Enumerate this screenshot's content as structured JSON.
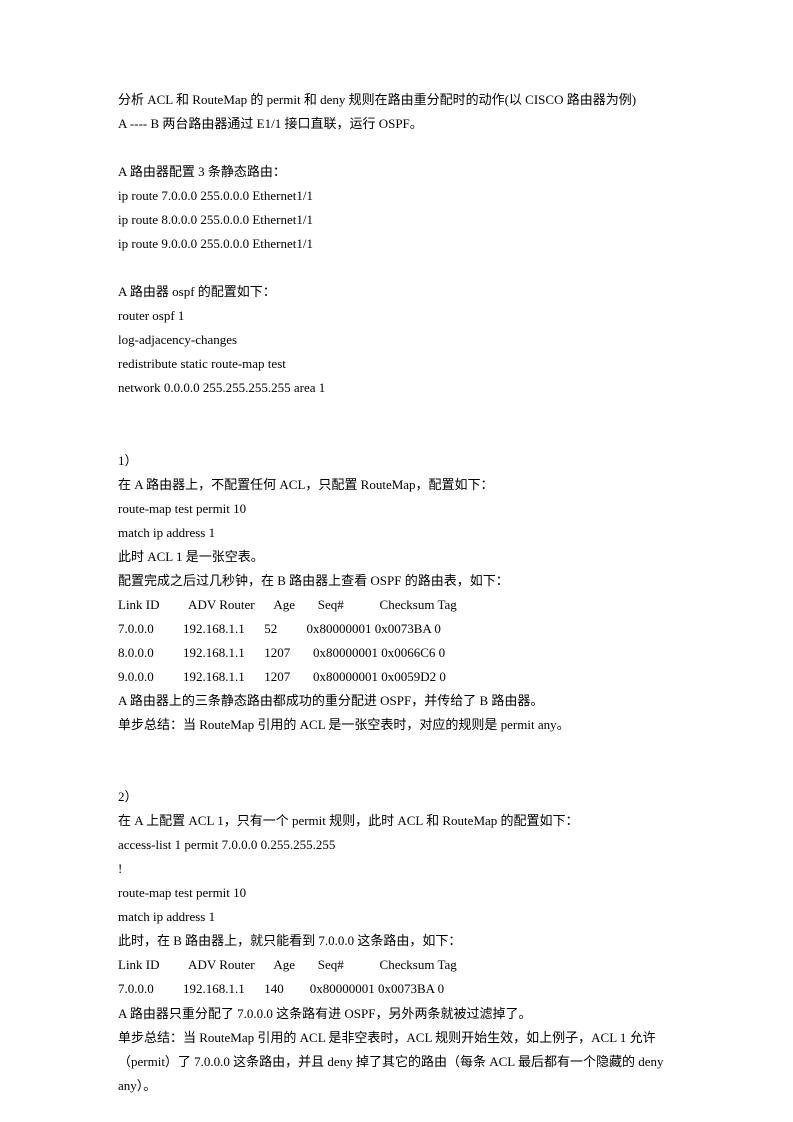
{
  "intro": {
    "line1": "分析 ACL 和 RouteMap 的 permit 和 deny 规则在路由重分配时的动作(以 CISCO 路由器为例)",
    "line2": "A ---- B  两台路由器通过 E1/1 接口直联，运行 OSPF。"
  },
  "static_routes": {
    "title": "A 路由器配置 3 条静态路由：",
    "r1": "ip route 7.0.0.0 255.0.0.0 Ethernet1/1",
    "r2": "ip route 8.0.0.0 255.0.0.0 Ethernet1/1",
    "r3": "ip route 9.0.0.0 255.0.0.0 Ethernet1/1"
  },
  "ospf_config": {
    "title": "A 路由器 ospf 的配置如下：",
    "l1": "router ospf 1",
    "l2": "log-adjacency-changes",
    "l3": "redistribute static route-map test",
    "l4": "network 0.0.0.0 255.255.255.255 area 1"
  },
  "section1": {
    "num": "1）",
    "l1": "在 A 路由器上，不配置任何 ACL，只配置 RouteMap，配置如下：",
    "l2": "route-map test permit 10",
    "l3": "match ip address 1",
    "l4": "此时 ACL 1 是一张空表。",
    "l5": "配置完成之后过几秒钟，在 B 路由器上查看 OSPF 的路由表，如下：",
    "header": "Link ID         ADV Router      Age       Seq#           Checksum Tag",
    "row1": "7.0.0.0         192.168.1.1      52         0x80000001 0x0073BA 0",
    "row2": "8.0.0.0         192.168.1.1      1207       0x80000001 0x0066C6 0",
    "row3": "9.0.0.0         192.168.1.1      1207       0x80000001 0x0059D2 0",
    "l6": "A 路由器上的三条静态路由都成功的重分配进 OSPF，并传给了 B 路由器。",
    "l7": "单步总结：当 RouteMap 引用的 ACL 是一张空表时，对应的规则是 permit any。"
  },
  "section2": {
    "num": "2）",
    "l1": "在 A 上配置 ACL 1，只有一个 permit 规则，此时 ACL 和 RouteMap 的配置如下：",
    "l2": "access-list 1 permit 7.0.0.0 0.255.255.255",
    "l3": "!",
    "l4": "route-map test permit 10",
    "l5": "match ip address 1",
    "l6": "此时，在 B 路由器上，就只能看到 7.0.0.0 这条路由，如下：",
    "header": "Link ID         ADV Router      Age       Seq#           Checksum Tag",
    "row1": "7.0.0.0         192.168.1.1      140        0x80000001 0x0073BA 0",
    "l7": "A 路由器只重分配了 7.0.0.0 这条路有进 OSPF，另外两条就被过滤掉了。",
    "l8": "单步总结：当 RouteMap 引用的 ACL 是非空表时，ACL 规则开始生效，如上例子，ACL 1 允许（permit）了 7.0.0.0 这条路由，并且 deny 掉了其它的路由（每条 ACL 最后都有一个隐藏的 deny any）。"
  }
}
